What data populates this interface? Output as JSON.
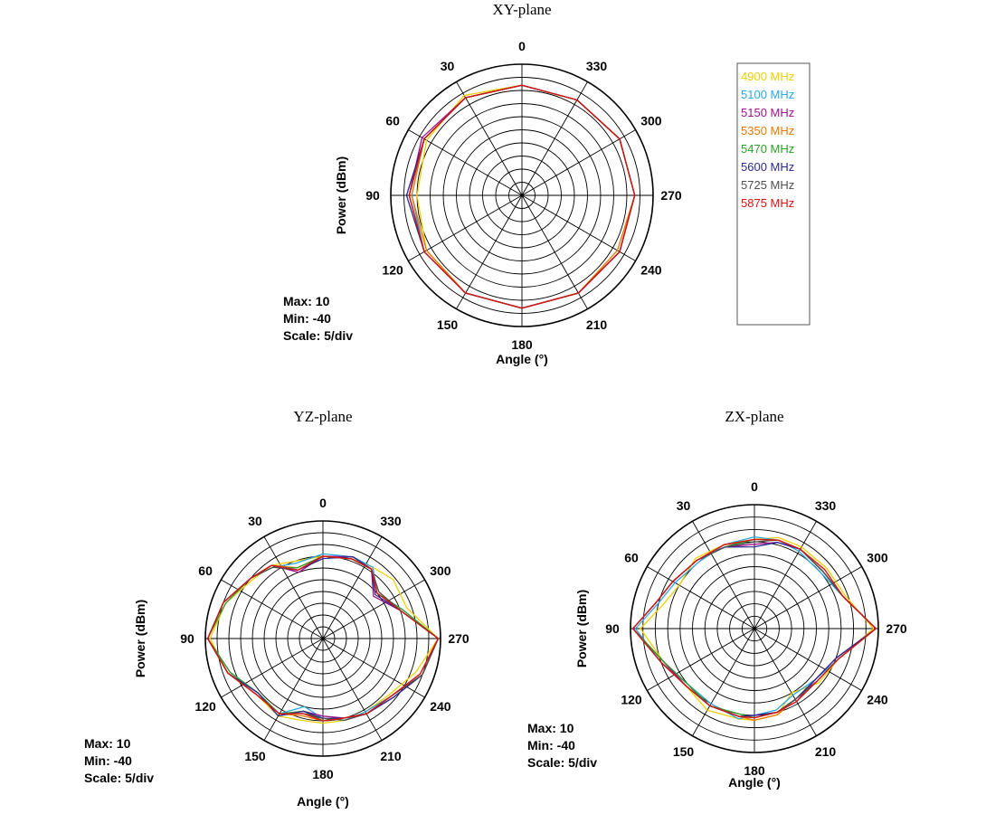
{
  "chart_data": [
    {
      "type": "polar",
      "title": "XY-plane",
      "xlabel": "Angle (°)",
      "ylabel": "Power (dBm)",
      "r_range": [
        -40,
        10
      ],
      "info": [
        "Max: 10",
        "Min: -40",
        "Scale: 5/div"
      ],
      "angle_ticks": [
        "0",
        "30",
        "60",
        "90",
        "120",
        "150",
        "180",
        "210",
        "240",
        "270",
        "300",
        "330"
      ],
      "theta": [
        0,
        30,
        60,
        90,
        120,
        150,
        180,
        210,
        240,
        270,
        300,
        330
      ],
      "series": [
        {
          "name": "4900 MHz",
          "color": "#f0d000",
          "values": [
            2,
            4,
            2,
            0,
            2,
            3,
            3,
            3,
            3,
            3,
            3,
            2
          ]
        },
        {
          "name": "5100 MHz",
          "color": "#2aa9e0",
          "values": [
            2,
            3,
            3,
            2,
            3,
            3,
            3,
            3,
            3,
            3,
            3,
            2
          ]
        },
        {
          "name": "5150 MHz",
          "color": "#a0108c",
          "values": [
            2,
            3,
            4,
            3,
            3,
            3,
            3,
            3,
            3,
            3,
            3,
            2
          ]
        },
        {
          "name": "5350 MHz",
          "color": "#e87800",
          "values": [
            2,
            3,
            3,
            2,
            2,
            3,
            3,
            3,
            2,
            3,
            3,
            2
          ]
        },
        {
          "name": "5470 MHz",
          "color": "#2aa02a",
          "values": [
            2,
            3,
            3,
            3,
            3,
            3,
            3,
            3,
            3,
            3,
            3,
            2
          ]
        },
        {
          "name": "5600 MHz",
          "color": "#2a2a90",
          "values": [
            2,
            3,
            3,
            4,
            3,
            3,
            3,
            3,
            3,
            3,
            3,
            2
          ]
        },
        {
          "name": "5725 MHz",
          "color": "#505050",
          "values": [
            2,
            3,
            3,
            3,
            3,
            3,
            3,
            3,
            3,
            3,
            3,
            2
          ]
        },
        {
          "name": "5875 MHz",
          "color": "#e01010",
          "values": [
            2,
            3,
            3,
            3,
            3,
            3,
            3,
            3,
            3,
            3,
            3,
            2
          ]
        }
      ]
    },
    {
      "type": "polar",
      "title": "YZ-plane",
      "xlabel": "Angle (°)",
      "ylabel": "Power (dBm)",
      "r_range": [
        -40,
        10
      ],
      "info": [
        "Max: 10",
        "Min: -40",
        "Scale: 5/div"
      ],
      "angle_ticks": [
        "0",
        "30",
        "60",
        "90",
        "120",
        "150",
        "180",
        "210",
        "240",
        "270",
        "300",
        "330"
      ],
      "theta": [
        0,
        20,
        35,
        50,
        70,
        90,
        110,
        130,
        150,
        165,
        180,
        195,
        210,
        230,
        250,
        270,
        290,
        310,
        325,
        340
      ],
      "series": [
        {
          "name": "4900 MHz",
          "color": "#f0d000",
          "values": [
            -5,
            -5,
            -2,
            -1,
            4,
            8,
            3,
            -3,
            -2,
            -4,
            -4,
            -4,
            -4,
            -3,
            2,
            9,
            -2,
            -1,
            -3,
            -4
          ]
        },
        {
          "name": "5100 MHz",
          "color": "#2aa9e0",
          "values": [
            -4,
            -6,
            -3,
            0,
            5,
            9,
            2,
            -4,
            -3,
            -10,
            -6,
            -4,
            -4,
            -2,
            4,
            9,
            -4,
            -10,
            -3,
            -3
          ]
        },
        {
          "name": "5150 MHz",
          "color": "#a0108c",
          "values": [
            -5,
            -10,
            -2,
            0,
            5,
            9,
            3,
            -3,
            -3,
            -8,
            -7,
            -5,
            -3,
            -1,
            5,
            9,
            -5,
            -12,
            -4,
            -3
          ]
        },
        {
          "name": "5350 MHz",
          "color": "#e87800",
          "values": [
            -5,
            -8,
            -2,
            0,
            5,
            9,
            3,
            -3,
            -3,
            -6,
            -5,
            -5,
            -3,
            -2,
            4,
            9,
            -5,
            -9,
            -4,
            -4
          ]
        },
        {
          "name": "5470 MHz",
          "color": "#2aa02a",
          "values": [
            -5,
            -8,
            -3,
            0,
            4,
            9,
            2,
            -4,
            -3,
            -8,
            -5,
            -5,
            -3,
            -2,
            5,
            9,
            -4,
            -10,
            -4,
            -4
          ]
        },
        {
          "name": "5600 MHz",
          "color": "#2a2a90",
          "values": [
            -6,
            -9,
            -2,
            0,
            5,
            9,
            3,
            -4,
            -2,
            -8,
            -6,
            -5,
            -3,
            -1,
            5,
            9,
            -5,
            -11,
            -4,
            -3
          ]
        },
        {
          "name": "5725 MHz",
          "color": "#505050",
          "values": [
            -5,
            -9,
            -3,
            0,
            5,
            9,
            3,
            -3,
            -3,
            -7,
            -6,
            -4,
            -3,
            -2,
            5,
            9,
            -5,
            -9,
            -4,
            -4
          ]
        },
        {
          "name": "5875 MHz",
          "color": "#e01010",
          "values": [
            -5,
            -9,
            -2,
            0,
            5,
            9,
            3,
            -3,
            -3,
            -7,
            -5,
            -5,
            -3,
            -2,
            4,
            9,
            -5,
            -10,
            -4,
            -4
          ]
        }
      ]
    },
    {
      "type": "polar",
      "title": "ZX-plane",
      "xlabel": "Angle (°)",
      "ylabel": "Power (dBm)",
      "r_range": [
        -40,
        10
      ],
      "info": [
        "Max: 10",
        "Min: -40",
        "Scale: 5/div"
      ],
      "angle_ticks": [
        "0",
        "30",
        "60",
        "90",
        "120",
        "150",
        "180",
        "210",
        "240",
        "270",
        "300",
        "330"
      ],
      "theta": [
        0,
        20,
        40,
        60,
        75,
        90,
        110,
        130,
        150,
        170,
        180,
        195,
        210,
        230,
        250,
        270,
        290,
        310,
        330,
        345
      ],
      "series": [
        {
          "name": "4900 MHz",
          "color": "#f0d000",
          "values": [
            -4,
            -4,
            -3,
            -5,
            -2,
            6,
            -1,
            -4,
            -2,
            -3,
            -3,
            -4,
            -10,
            -6,
            -4,
            8,
            -1,
            -2,
            -2,
            -2
          ]
        },
        {
          "name": "5100 MHz",
          "color": "#2aa9e0",
          "values": [
            -3,
            -4,
            -5,
            -3,
            0,
            8,
            0,
            -5,
            -5,
            -3,
            -5,
            -6,
            -9,
            -8,
            -4,
            9,
            -2,
            -5,
            -4,
            -3
          ]
        },
        {
          "name": "5150 MHz",
          "color": "#a0108c",
          "values": [
            -6,
            -5,
            -4,
            -2,
            1,
            9,
            -1,
            -4,
            -4,
            -4,
            -5,
            -5,
            -6,
            -8,
            -5,
            9,
            -2,
            -4,
            -3,
            -4
          ]
        },
        {
          "name": "5350 MHz",
          "color": "#e87800",
          "values": [
            -4,
            -4,
            -4,
            -2,
            1,
            9,
            0,
            -4,
            -4,
            -4,
            -3,
            -4,
            -7,
            -7,
            -4,
            9,
            -2,
            -3,
            -3,
            -3
          ]
        },
        {
          "name": "5470 MHz",
          "color": "#2aa02a",
          "values": [
            -4,
            -5,
            -4,
            -2,
            1,
            9,
            -1,
            -5,
            -4,
            -5,
            -4,
            -5,
            -7,
            -7,
            -4,
            9,
            -2,
            -4,
            -3,
            -3
          ]
        },
        {
          "name": "5600 MHz",
          "color": "#2a2a90",
          "values": [
            -7,
            -5,
            -4,
            -2,
            1,
            9,
            0,
            -4,
            -4,
            -4,
            -5,
            -5,
            -7,
            -8,
            -5,
            9,
            -2,
            -4,
            -3,
            -4
          ]
        },
        {
          "name": "5725 MHz",
          "color": "#505050",
          "values": [
            -5,
            -5,
            -4,
            -2,
            1,
            9,
            0,
            -4,
            -4,
            -4,
            -4,
            -5,
            -7,
            -7,
            -4,
            9,
            -2,
            -4,
            -3,
            -3
          ]
        },
        {
          "name": "5875 MHz",
          "color": "#e01010",
          "values": [
            -4,
            -4,
            -4,
            -2,
            1,
            9,
            0,
            -4,
            -4,
            -4,
            -4,
            -5,
            -6,
            -7,
            -4,
            9,
            -2,
            -3,
            -3,
            -3
          ]
        }
      ]
    }
  ]
}
